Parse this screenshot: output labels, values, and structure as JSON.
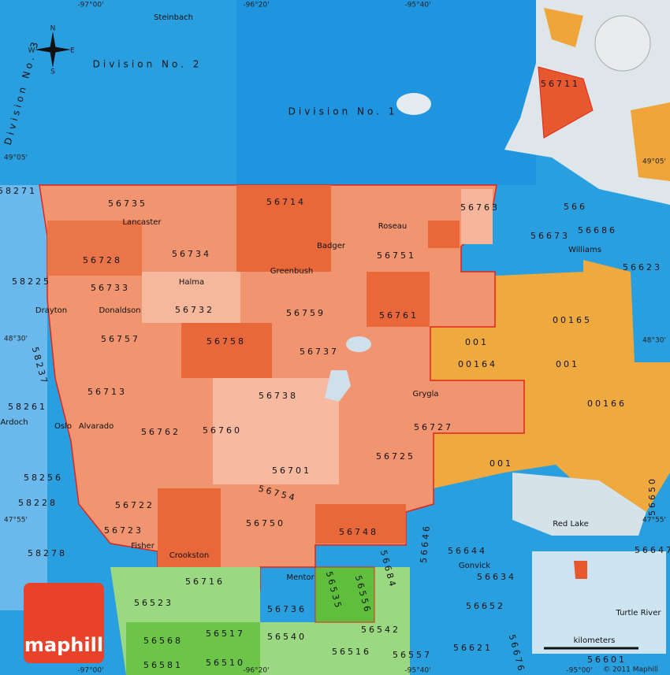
{
  "coordinates": [
    "-97°00'",
    "-96°20'",
    "-95°40'",
    "-97°00'",
    "-96°20'",
    "-95°40'",
    "-95°00'",
    "49°05'",
    "48°30'",
    "47°55'",
    "49°05'",
    "48°30'",
    "47°55'"
  ],
  "regions": [
    "Division No. 2",
    "Division No. 1",
    "Division No. 3"
  ],
  "places": [
    "Steinbach",
    "Lancaster",
    "Badger",
    "Roseau",
    "Greenbush",
    "Halma",
    "Drayton",
    "Donaldson",
    "Williams",
    "Grygla",
    "Oslo",
    "Alvarado",
    "Ardoch",
    "Red Lake",
    "Fisher",
    "Crookston",
    "Mentor",
    "Gonvick",
    "Turtle River"
  ],
  "postal_codes": [
    "56735",
    "56714",
    "56763",
    "56728",
    "56734",
    "56751",
    "56733",
    "56732",
    "56759",
    "56761",
    "56757",
    "56758",
    "56737",
    "56713",
    "56738",
    "56727",
    "56762",
    "56760",
    "56725",
    "56701",
    "56722",
    "56754",
    "56723",
    "56750",
    "56748",
    "56716",
    "56736",
    "56535",
    "56556",
    "56684",
    "56646",
    "56523",
    "56568",
    "56517",
    "56540",
    "56542",
    "56516",
    "56557",
    "56581",
    "56510",
    "56711",
    "56673",
    "56686",
    "56623",
    "58271",
    "58225",
    "58237",
    "58261",
    "58256",
    "58228",
    "58278",
    "56644",
    "56634",
    "56652",
    "56621",
    "56647",
    "56650",
    "56601",
    "56676",
    "00165",
    "00164",
    "001",
    "001",
    "00166",
    "001",
    "566"
  ],
  "compass": [
    "N",
    "S",
    "E",
    "W"
  ],
  "logo": "maphill",
  "scale_label": "kilometers",
  "copyright": "© 2011 Maphill"
}
